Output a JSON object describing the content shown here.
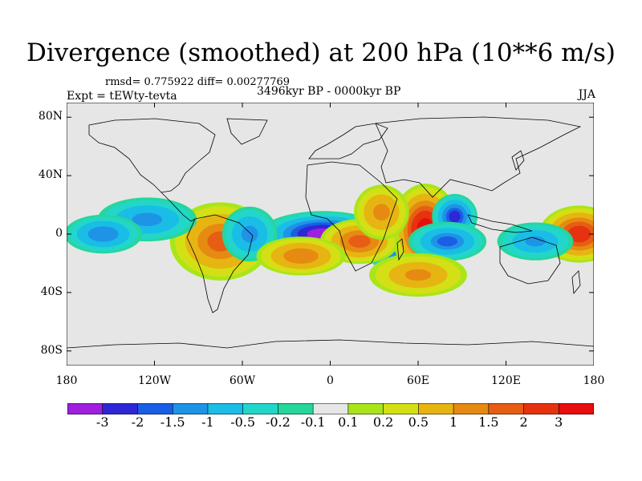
{
  "header": {
    "title": "Divergence (smoothed) at 200 hPa (10**6 m/s)",
    "stats": "rmsd= 0.775922 diff= 0.00277769",
    "experiment": "Expt = tEWty-tevta",
    "period": "3496kyr BP - 0000kyr BP",
    "season": "JJA"
  },
  "map": {
    "lat_range": [
      -90,
      90
    ],
    "lon_range": [
      -180,
      180
    ],
    "lat_labels": [
      "80N",
      "40N",
      "0",
      "40S",
      "80S"
    ],
    "lat_values": [
      80,
      40,
      0,
      -40,
      -80
    ],
    "lon_labels": [
      "180",
      "120W",
      "60W",
      "0",
      "60E",
      "120E",
      "180"
    ],
    "lon_values": [
      -180,
      -120,
      -60,
      0,
      60,
      120,
      180
    ],
    "features": [
      {
        "name": "south-atlantic-convergence",
        "lon": -5,
        "lat": 0,
        "value": -3.2,
        "spread_lon": 22,
        "spread_lat": 8
      },
      {
        "name": "east-africa-convergence",
        "lon": 45,
        "lat": 0,
        "value": -2.8,
        "spread_lon": 12,
        "spread_lat": 14
      },
      {
        "name": "indian-ocean-divergence",
        "lon": 65,
        "lat": 3,
        "value": 3.3,
        "spread_lon": 12,
        "spread_lat": 16
      },
      {
        "name": "bay-of-bengal-convergence",
        "lon": 85,
        "lat": 12,
        "value": -2.2,
        "spread_lon": 8,
        "spread_lat": 8
      },
      {
        "name": "west-pacific-divergence",
        "lon": 170,
        "lat": 0,
        "value": 2.5,
        "spread_lon": 14,
        "spread_lat": 10
      },
      {
        "name": "atlantic-divergence",
        "lon": 20,
        "lat": -5,
        "value": 1.8,
        "spread_lon": 14,
        "spread_lat": 8
      },
      {
        "name": "south-america-divergence",
        "lon": -75,
        "lat": -5,
        "value": 1.6,
        "spread_lon": 18,
        "spread_lat": 14
      },
      {
        "name": "south-america-convergence",
        "lon": -55,
        "lat": 0,
        "value": -1.2,
        "spread_lon": 10,
        "spread_lat": 10
      },
      {
        "name": "indian-ocean-south-convergence",
        "lon": 80,
        "lat": -5,
        "value": -1.5,
        "spread_lon": 14,
        "spread_lat": 7
      },
      {
        "name": "mid-pacific-convergence",
        "lon": -125,
        "lat": 10,
        "value": -1.2,
        "spread_lon": 18,
        "spread_lat": 8
      },
      {
        "name": "east-pacific-convergence",
        "lon": -155,
        "lat": 0,
        "value": -1.4,
        "spread_lon": 14,
        "spread_lat": 7
      },
      {
        "name": "africa-divergence",
        "lon": 35,
        "lat": 15,
        "value": 1.2,
        "spread_lon": 10,
        "spread_lat": 10
      },
      {
        "name": "southern-ocean-divergence",
        "lon": 60,
        "lat": -28,
        "value": 1.0,
        "spread_lon": 18,
        "spread_lat": 8
      },
      {
        "name": "tropical-atlantic-divergence",
        "lon": -20,
        "lat": -15,
        "value": 1.4,
        "spread_lon": 16,
        "spread_lat": 7
      },
      {
        "name": "west-pacific-convergence",
        "lon": 140,
        "lat": -5,
        "value": -1.0,
        "spread_lon": 14,
        "spread_lat": 7
      }
    ]
  },
  "colorbar": {
    "labels": [
      "-3",
      "-2",
      "-1.5",
      "-1",
      "-0.5",
      "-0.2",
      "-0.1",
      "0.1",
      "0.2",
      "0.5",
      "1",
      "1.5",
      "2",
      "3"
    ],
    "levels": [
      -3,
      -2,
      -1.5,
      -1,
      -0.5,
      -0.2,
      -0.1,
      0.1,
      0.2,
      0.5,
      1,
      1.5,
      2,
      3
    ],
    "colors": [
      "#9e1fe0",
      "#2f26d6",
      "#1a5ee6",
      "#1f93e6",
      "#19bde6",
      "#22d6c9",
      "#26d69c",
      "#e6e6e6",
      "#a8e619",
      "#d4df15",
      "#e6b512",
      "#e68a12",
      "#e65d14",
      "#e6320f",
      "#e60e0e"
    ]
  }
}
